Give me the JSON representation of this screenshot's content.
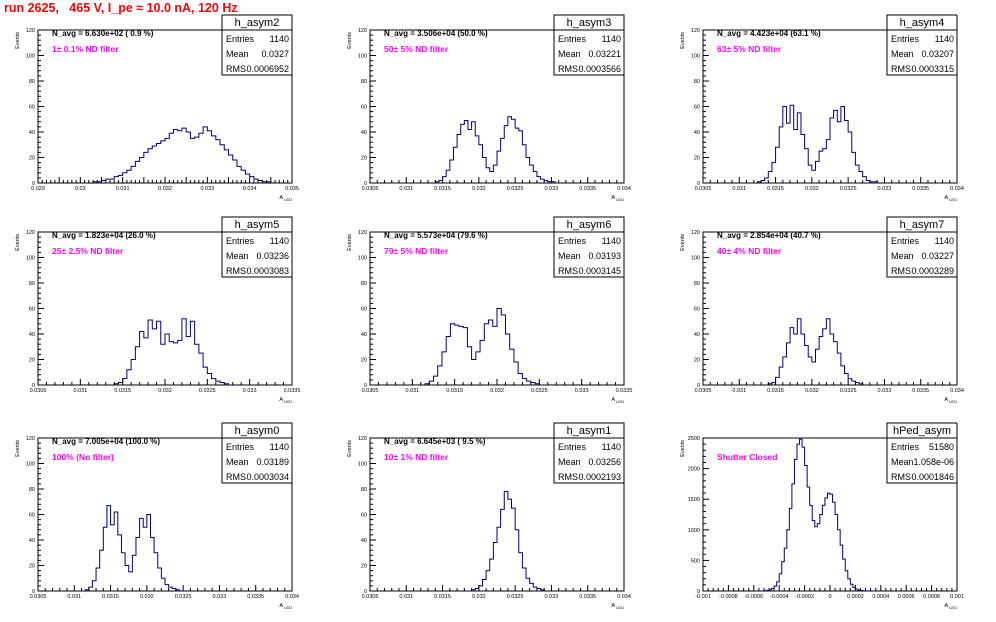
{
  "page": {
    "title": "run 2625,   465 V, I_pe ≈ 10.0 nA, 120 Hz",
    "title_color": "#ff0000",
    "hist_color": "#000080",
    "annotation_color": "#ff00ff"
  },
  "chart_data": [
    {
      "type": "bar",
      "name": "h_asym2",
      "stats": {
        "entries": "1140",
        "mean": "0.0327",
        "rms": "0.0006952"
      },
      "stat_labels": [
        "Entries",
        "Mean",
        "RMS"
      ],
      "header": "N_avg = 6.630e+02 ( 0.9 %)",
      "annotation": "1± 0.1% ND filter",
      "ylabel": "Events",
      "xlabel": "A_LED",
      "xlim": [
        0.029,
        0.035
      ],
      "ylim": [
        0,
        120
      ],
      "yticks": [
        "0",
        "20",
        "40",
        "60",
        "80",
        "100",
        "120"
      ],
      "xtick_values": [
        0.029,
        0.0295,
        0.03,
        0.0305,
        0.031,
        0.0315,
        0.032,
        0.0325,
        0.033,
        0.0335,
        0.034,
        0.0345,
        0.035
      ],
      "xtick_labels": [
        "0.029",
        "",
        "0.03",
        "",
        "0.031",
        "",
        "0.032",
        "",
        "0.033",
        "",
        "0.034",
        "",
        "0.035"
      ],
      "bin_start": 0.0303,
      "bin_width": 0.0001,
      "counts": [
        1,
        1,
        2,
        3,
        3,
        5,
        6,
        8,
        10,
        13,
        17,
        20,
        24,
        27,
        29,
        31,
        33,
        35,
        39,
        42,
        41,
        43,
        40,
        35,
        36,
        39,
        44,
        41,
        37,
        34,
        30,
        26,
        22,
        18,
        13,
        10,
        7,
        5,
        3,
        2,
        1,
        1
      ]
    },
    {
      "type": "bar",
      "name": "h_asym3",
      "stats": {
        "entries": "1140",
        "mean": "0.03221",
        "rms": "0.0003566"
      },
      "stat_labels": [
        "Entries",
        "Mean",
        "RMS"
      ],
      "header": "N_avg = 3.506e+04 (50.0 %)",
      "annotation": "50± 5% ND filter",
      "ylabel": "Events",
      "xlabel": "A_LED",
      "xlim": [
        0.0305,
        0.034
      ],
      "ylim": [
        0,
        120
      ],
      "yticks": [
        "0",
        "20",
        "40",
        "60",
        "80",
        "100",
        "120"
      ],
      "xtick_values": [
        0.0305,
        0.031,
        0.0315,
        0.032,
        0.0325,
        0.033,
        0.0335,
        0.034
      ],
      "xtick_labels": [
        "0.0305",
        "0.031",
        "0.0315",
        "0.032",
        "0.0325",
        "0.033",
        "0.0335",
        "0.034"
      ],
      "bin_start": 0.0314,
      "bin_width": 5e-05,
      "counts": [
        1,
        2,
        5,
        10,
        18,
        28,
        38,
        46,
        49,
        42,
        48,
        37,
        30,
        20,
        12,
        9,
        14,
        25,
        35,
        45,
        52,
        50,
        43,
        41,
        30,
        20,
        14,
        9,
        5,
        3,
        2,
        1,
        1
      ]
    },
    {
      "type": "bar",
      "name": "h_asym4",
      "stats": {
        "entries": "1140",
        "mean": "0.03207",
        "rms": "0.0003315"
      },
      "stat_labels": [
        "Entries",
        "Mean",
        "RMS"
      ],
      "header": "N_avg = 4.423e+04 (63.1 %)",
      "annotation": "63± 5% ND filter",
      "ylabel": "Events",
      "xlabel": "A_LED",
      "xlim": [
        0.0305,
        0.034
      ],
      "ylim": [
        0,
        120
      ],
      "yticks": [
        "0",
        "20",
        "40",
        "60",
        "80",
        "100",
        "120"
      ],
      "xtick_values": [
        0.0305,
        0.031,
        0.0315,
        0.032,
        0.0325,
        0.033,
        0.0335,
        0.034
      ],
      "xtick_labels": [
        "0.0305",
        "0.031",
        "0.0315",
        "0.032",
        "0.0325",
        "0.033",
        "0.0335",
        "0.034"
      ],
      "bin_start": 0.03125,
      "bin_width": 5e-05,
      "counts": [
        1,
        2,
        4,
        9,
        16,
        28,
        44,
        60,
        47,
        61,
        42,
        55,
        38,
        27,
        14,
        10,
        17,
        25,
        27,
        34,
        51,
        57,
        48,
        60,
        49,
        40,
        24,
        14,
        9,
        5,
        2,
        1,
        1
      ]
    },
    {
      "type": "bar",
      "name": "h_asym5",
      "stats": {
        "entries": "1140",
        "mean": "0.03236",
        "rms": "0.0003083"
      },
      "stat_labels": [
        "Entries",
        "Mean",
        "RMS"
      ],
      "header": "N_avg = 1.823e+04 (26.0 %)",
      "annotation": "25± 2.5% ND filter",
      "ylabel": "Events",
      "xlabel": "A_LED",
      "xlim": [
        0.0305,
        0.0335
      ],
      "ylim": [
        0,
        120
      ],
      "yticks": [
        "0",
        "20",
        "40",
        "60",
        "80",
        "100",
        "120"
      ],
      "xtick_values": [
        0.0305,
        0.031,
        0.0315,
        0.032,
        0.0325,
        0.033,
        0.0335
      ],
      "xtick_labels": [
        "0.0305",
        "0.031",
        "0.0315",
        "0.032",
        "0.0325",
        "0.033",
        "0.0335"
      ],
      "bin_start": 0.0314,
      "bin_width": 5e-05,
      "counts": [
        1,
        2,
        5,
        12,
        20,
        30,
        42,
        37,
        51,
        44,
        50,
        32,
        40,
        34,
        33,
        35,
        52,
        38,
        50,
        32,
        25,
        14,
        9,
        5,
        3,
        2,
        1
      ]
    },
    {
      "type": "bar",
      "name": "h_asym6",
      "stats": {
        "entries": "1140",
        "mean": "0.03193",
        "rms": "0.0003145"
      },
      "stat_labels": [
        "Entries",
        "Mean",
        "RMS"
      ],
      "header": "N_avg = 5.573e+04 (79.6 %)",
      "annotation": "79± 5% ND filter",
      "ylabel": "Events",
      "xlabel": "A_LED",
      "xlim": [
        0.0305,
        0.0335
      ],
      "ylim": [
        0,
        120
      ],
      "yticks": [
        "0",
        "20",
        "40",
        "60",
        "80",
        "100",
        "120"
      ],
      "xtick_values": [
        0.0305,
        0.031,
        0.0315,
        0.032,
        0.0325,
        0.033,
        0.0335
      ],
      "xtick_labels": [
        "0.0305",
        "0.031",
        "0.0315",
        "0.032",
        "0.0325",
        "0.033",
        "0.0335"
      ],
      "bin_start": 0.03115,
      "bin_width": 5e-05,
      "counts": [
        1,
        3,
        7,
        15,
        26,
        38,
        48,
        47,
        46,
        45,
        30,
        20,
        26,
        35,
        48,
        51,
        46,
        60,
        55,
        40,
        28,
        18,
        9,
        5,
        3,
        2,
        1
      ]
    },
    {
      "type": "bar",
      "name": "h_asym7",
      "stats": {
        "entries": "1140",
        "mean": "0.03227",
        "rms": "0.0003289"
      },
      "stat_labels": [
        "Entries",
        "Mean",
        "RMS"
      ],
      "header": "N_avg = 2.854e+04 (40.7 %)",
      "annotation": "40± 4% ND filter",
      "ylabel": "Events",
      "xlabel": "A_LED",
      "xlim": [
        0.0305,
        0.034
      ],
      "ylim": [
        0,
        120
      ],
      "yticks": [
        "0",
        "20",
        "40",
        "60",
        "80",
        "100",
        "120"
      ],
      "xtick_values": [
        0.0305,
        0.031,
        0.0315,
        0.032,
        0.0325,
        0.033,
        0.0335,
        0.034
      ],
      "xtick_labels": [
        "0.0305",
        "0.031",
        "0.0315",
        "0.032",
        "0.0325",
        "0.033",
        "0.0335",
        "0.034"
      ],
      "bin_start": 0.0314,
      "bin_width": 5e-05,
      "counts": [
        1,
        2,
        6,
        14,
        22,
        33,
        45,
        40,
        52,
        40,
        31,
        22,
        18,
        28,
        38,
        44,
        52,
        40,
        34,
        25,
        15,
        9,
        5,
        3,
        2,
        1
      ]
    },
    {
      "type": "bar",
      "name": "h_asym0",
      "stats": {
        "entries": "1140",
        "mean": "0.03189",
        "rms": "0.0003034"
      },
      "stat_labels": [
        "Entries",
        "Mean",
        "RMS"
      ],
      "header": "N_avg = 7.005e+04 (100.0 %)",
      "annotation": "100% (No filter)",
      "ylabel": "Events",
      "xlabel": "A_LED",
      "xlim": [
        0.0305,
        0.034
      ],
      "ylim": [
        0,
        120
      ],
      "yticks": [
        "0",
        "20",
        "40",
        "60",
        "80",
        "100",
        "120"
      ],
      "xtick_values": [
        0.0305,
        0.031,
        0.0315,
        0.032,
        0.0325,
        0.033,
        0.0335,
        0.034
      ],
      "xtick_labels": [
        "0.0305",
        "0.031",
        "0.0315",
        "0.032",
        "0.0325",
        "0.033",
        "0.0335",
        "0.034"
      ],
      "bin_start": 0.03115,
      "bin_width": 5e-05,
      "counts": [
        1,
        3,
        8,
        18,
        32,
        50,
        67,
        52,
        62,
        44,
        30,
        20,
        15,
        28,
        42,
        57,
        50,
        60,
        42,
        30,
        18,
        10,
        5,
        3,
        2,
        1
      ]
    },
    {
      "type": "bar",
      "name": "h_asym1",
      "stats": {
        "entries": "1140",
        "mean": "0.03256",
        "rms": "0.0002193"
      },
      "stat_labels": [
        "Entries",
        "Mean",
        "RMS"
      ],
      "header": "N_avg = 6.645e+03 ( 9.5 %)",
      "annotation": "10± 1% ND filter",
      "ylabel": "Events",
      "xlabel": "A_LED",
      "xlim": [
        0.0305,
        0.034
      ],
      "ylim": [
        0,
        120
      ],
      "yticks": [
        "0",
        "20",
        "40",
        "60",
        "80",
        "100",
        "120"
      ],
      "xtick_values": [
        0.0305,
        0.031,
        0.0315,
        0.032,
        0.0325,
        0.033,
        0.0335,
        0.034
      ],
      "xtick_labels": [
        "0.0305",
        "0.031",
        "0.0315",
        "0.032",
        "0.0325",
        "0.033",
        "0.0335",
        "0.034"
      ],
      "bin_start": 0.0319,
      "bin_width": 5e-05,
      "counts": [
        1,
        2,
        4,
        9,
        16,
        25,
        38,
        50,
        64,
        78,
        72,
        65,
        48,
        30,
        18,
        10,
        6,
        3,
        2,
        1
      ]
    },
    {
      "type": "bar",
      "name": "hPed_asym",
      "stats": {
        "entries": "51580",
        "mean": "1.058e-06",
        "rms": "0.0001846"
      },
      "stat_labels": [
        "Entries",
        "Mean",
        "RMS"
      ],
      "header": "",
      "annotation": "Shutter Closed",
      "ylabel": "Events",
      "xlabel": "A_LED",
      "xlim": [
        -0.001,
        0.001
      ],
      "ylim": [
        0,
        2500
      ],
      "yticks": [
        "0",
        "500",
        "1000",
        "1500",
        "2000",
        "2500"
      ],
      "xtick_values": [
        -0.001,
        -0.0008,
        -0.0006,
        -0.0004,
        -0.0002,
        0,
        0.0002,
        0.0004,
        0.0006,
        0.0008,
        0.001
      ],
      "xtick_labels": [
        "-0.001",
        "-0.0008",
        "-0.0006",
        "-0.0004",
        "-0.0002",
        "0",
        "0.0002",
        "0.0004",
        "0.0006",
        "0.0008",
        "0.001"
      ],
      "bin_start": -0.00052,
      "bin_width": 2e-05,
      "counts": [
        5,
        10,
        20,
        40,
        80,
        150,
        280,
        480,
        700,
        1000,
        1350,
        1750,
        2150,
        2400,
        2480,
        2350,
        2050,
        1700,
        1400,
        1150,
        1050,
        1100,
        1250,
        1400,
        1520,
        1600,
        1580,
        1450,
        1250,
        1000,
        750,
        520,
        330,
        200,
        110,
        60,
        30,
        15,
        8,
        4,
        2
      ]
    }
  ]
}
